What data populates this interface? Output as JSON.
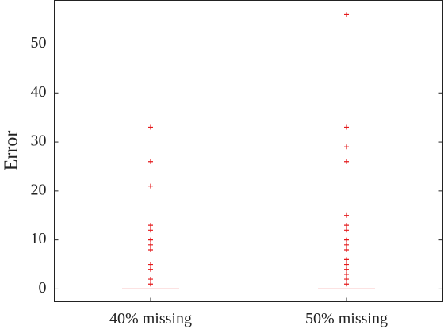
{
  "chart_data": {
    "type": "box",
    "ylabel": "Error",
    "categories": [
      "40% missing",
      "50% missing"
    ],
    "medians": [
      0,
      0
    ],
    "outliers": [
      [
        33,
        26,
        21,
        13,
        12,
        10,
        9,
        8,
        5,
        4,
        2,
        1
      ],
      [
        56,
        33,
        29,
        26,
        15,
        13,
        12,
        10,
        9,
        8,
        6,
        5,
        4,
        3,
        2,
        1
      ]
    ],
    "color": "#e41a1c",
    "ylim": [
      -2.6,
      58.9
    ],
    "yticks": [
      0,
      10,
      20,
      30,
      40,
      50
    ]
  }
}
